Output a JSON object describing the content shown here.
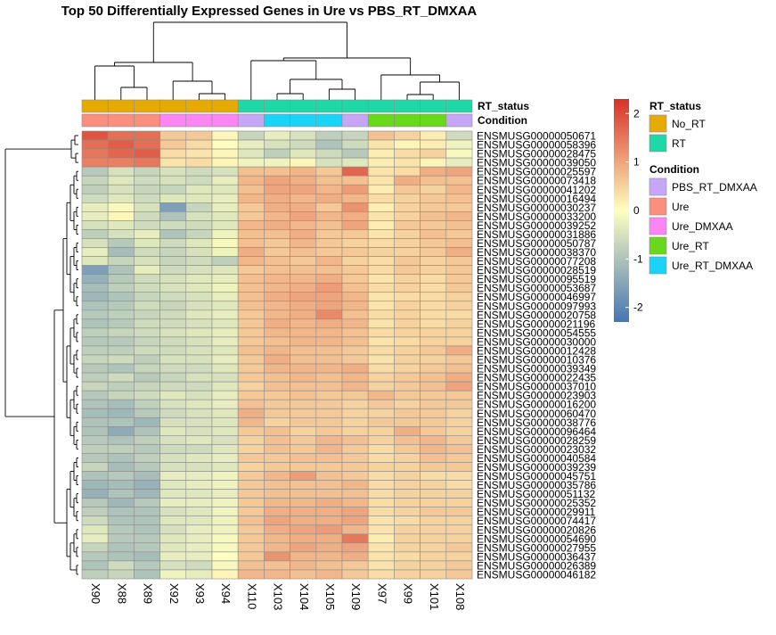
{
  "chart_data": {
    "type": "heatmap",
    "title": "Top 50 Differentially Expressed Genes in Ure vs PBS_RT_DMXAA",
    "columns": [
      "X90",
      "X88",
      "X89",
      "X92",
      "X93",
      "X94",
      "X110",
      "X103",
      "X104",
      "X105",
      "X109",
      "X97",
      "X99",
      "X101",
      "X108"
    ],
    "rows": [
      "ENSMUSG00000050671",
      "ENSMUSG00000058396",
      "ENSMUSG00000028475",
      "ENSMUSG00000039050",
      "ENSMUSG00000025597",
      "ENSMUSG00000073418",
      "ENSMUSG00000041202",
      "ENSMUSG00000016494",
      "ENSMUSG00000030237",
      "ENSMUSG00000033200",
      "ENSMUSG00000039252",
      "ENSMUSG00000031886",
      "ENSMUSG00000050787",
      "ENSMUSG00000038370",
      "ENSMUSG00000077208",
      "ENSMUSG00000028519",
      "ENSMUSG00000095519",
      "ENSMUSG00000053687",
      "ENSMUSG00000046997",
      "ENSMUSG00000097993",
      "ENSMUSG00000020758",
      "ENSMUSG00000021196",
      "ENSMUSG00000054555",
      "ENSMUSG00000030000",
      "ENSMUSG00000012428",
      "ENSMUSG00000010376",
      "ENSMUSG00000039349",
      "ENSMUSG00000022435",
      "ENSMUSG00000037010",
      "ENSMUSG00000023903",
      "ENSMUSG00000016200",
      "ENSMUSG00000060470",
      "ENSMUSG00000038776",
      "ENSMUSG00000096464",
      "ENSMUSG00000028259",
      "ENSMUSG00000023032",
      "ENSMUSG00000040584",
      "ENSMUSG00000039239",
      "ENSMUSG00000045751",
      "ENSMUSG00000035786",
      "ENSMUSG00000051132",
      "ENSMUSG00000025352",
      "ENSMUSG00000029911",
      "ENSMUSG00000074417",
      "ENSMUSG00000020826",
      "ENSMUSG00000054690",
      "ENSMUSG00000027955",
      "ENSMUSG00000036437",
      "ENSMUSG00000026389",
      "ENSMUSG00000046182"
    ],
    "values": [
      [
        1.9,
        1.6,
        1.6,
        0.6,
        0.6,
        0.1,
        -0.7,
        -0.3,
        -0.5,
        -0.8,
        -0.7,
        0.7,
        0.5,
        0.2,
        -0.6
      ],
      [
        1.6,
        1.8,
        1.6,
        0.6,
        0.4,
        0.0,
        -0.3,
        -0.5,
        -0.6,
        -1.0,
        -0.6,
        0.3,
        0.1,
        0.2,
        -0.2
      ],
      [
        1.5,
        1.7,
        1.8,
        0.4,
        0.3,
        0.1,
        -0.4,
        -0.8,
        -0.4,
        -0.6,
        -0.9,
        0.2,
        0.4,
        0.5,
        -0.1
      ],
      [
        1.4,
        1.4,
        1.5,
        0.3,
        0.4,
        0.1,
        -0.2,
        -0.2,
        0.1,
        -0.5,
        -0.4,
        0.2,
        0.3,
        0.1,
        -0.3
      ],
      [
        -0.9,
        -0.5,
        -0.7,
        -0.5,
        -0.6,
        -0.5,
        0.7,
        0.7,
        0.8,
        0.6,
        1.7,
        0.3,
        0.4,
        0.9,
        1.0
      ],
      [
        -0.7,
        -0.4,
        -0.6,
        -0.5,
        -0.6,
        -0.3,
        0.8,
        1.0,
        0.9,
        0.7,
        0.7,
        0.3,
        0.9,
        0.7,
        0.7
      ],
      [
        -0.8,
        -0.5,
        -0.7,
        -0.7,
        -0.4,
        -0.4,
        0.7,
        1.0,
        1.0,
        0.8,
        1.1,
        0.2,
        0.6,
        0.5,
        0.8
      ],
      [
        -0.6,
        -0.4,
        -0.6,
        -0.4,
        -0.4,
        -0.3,
        0.8,
        0.9,
        0.8,
        0.9,
        0.8,
        0.4,
        0.5,
        0.6,
        0.7
      ],
      [
        -0.3,
        -0.1,
        -0.5,
        -1.6,
        -0.7,
        -0.3,
        0.6,
        0.9,
        0.9,
        0.6,
        1.2,
        0.2,
        0.5,
        0.6,
        0.6
      ],
      [
        -0.3,
        0.1,
        -0.6,
        -1.0,
        -0.5,
        -0.4,
        0.6,
        0.8,
        1.0,
        0.8,
        0.9,
        0.3,
        0.5,
        0.7,
        0.8
      ],
      [
        -0.5,
        -0.4,
        -0.6,
        -0.6,
        -0.6,
        -0.4,
        0.8,
        0.9,
        0.8,
        0.7,
        1.0,
        0.2,
        0.6,
        0.6,
        0.7
      ],
      [
        -0.8,
        -0.5,
        -0.3,
        -1.0,
        -0.7,
        -0.2,
        0.7,
        0.7,
        0.9,
        0.6,
        0.6,
        0.3,
        0.5,
        0.7,
        0.6
      ],
      [
        -0.5,
        -0.9,
        -0.4,
        -0.6,
        -0.4,
        -0.1,
        0.7,
        0.6,
        0.8,
        0.6,
        0.5,
        0.4,
        0.5,
        0.6,
        0.7
      ],
      [
        -0.3,
        -1.1,
        -0.6,
        -0.7,
        -0.5,
        -0.2,
        0.9,
        0.6,
        0.7,
        0.6,
        0.6,
        0.5,
        0.5,
        0.6,
        0.9
      ],
      [
        -0.4,
        -0.7,
        -0.5,
        -0.7,
        -0.6,
        -0.8,
        0.8,
        0.7,
        0.6,
        0.8,
        0.5,
        0.4,
        0.6,
        0.5,
        0.6
      ],
      [
        -1.6,
        -1.0,
        -0.3,
        -0.6,
        -0.5,
        -0.4,
        0.6,
        0.7,
        0.7,
        0.7,
        0.6,
        0.4,
        0.6,
        0.5,
        0.6
      ],
      [
        -1.3,
        -0.9,
        -0.6,
        -0.5,
        -0.4,
        -0.3,
        0.7,
        0.8,
        0.8,
        0.9,
        0.6,
        0.3,
        0.5,
        0.4,
        0.6
      ],
      [
        -1.1,
        -0.8,
        -0.6,
        -0.5,
        -0.4,
        -0.2,
        0.7,
        0.8,
        0.9,
        1.1,
        0.7,
        0.4,
        0.5,
        0.4,
        0.6
      ],
      [
        -1.2,
        -1.0,
        -0.7,
        -0.6,
        -0.5,
        -0.3,
        0.7,
        0.9,
        1.0,
        1.0,
        0.8,
        0.3,
        0.4,
        0.4,
        0.5
      ],
      [
        -1.0,
        -0.9,
        -0.6,
        -0.7,
        -0.5,
        -0.4,
        0.7,
        0.8,
        0.9,
        1.0,
        0.8,
        0.3,
        0.5,
        0.4,
        0.5
      ],
      [
        -0.9,
        -0.8,
        -0.7,
        -0.6,
        -0.4,
        -0.3,
        0.6,
        0.8,
        0.9,
        1.3,
        0.7,
        0.4,
        0.5,
        0.4,
        0.4
      ],
      [
        -1.0,
        -0.9,
        -0.6,
        -0.6,
        -0.5,
        -0.4,
        0.6,
        0.9,
        0.8,
        0.9,
        0.8,
        0.3,
        0.5,
        0.4,
        0.5
      ],
      [
        -0.8,
        -0.7,
        -0.6,
        -0.5,
        -0.4,
        -0.3,
        0.6,
        0.8,
        0.8,
        0.8,
        0.7,
        0.4,
        0.5,
        0.5,
        0.5
      ],
      [
        -0.9,
        -0.9,
        -0.7,
        -0.6,
        -0.5,
        -0.3,
        0.6,
        0.7,
        0.8,
        0.8,
        0.7,
        0.3,
        0.4,
        0.5,
        0.5
      ],
      [
        -0.8,
        -0.8,
        -0.6,
        -0.6,
        -0.5,
        -0.4,
        0.7,
        0.8,
        0.7,
        0.7,
        0.6,
        0.4,
        0.5,
        0.6,
        0.9
      ],
      [
        -0.7,
        -0.6,
        -0.8,
        -0.5,
        -0.5,
        -0.3,
        0.6,
        0.9,
        0.7,
        0.7,
        0.6,
        0.3,
        0.5,
        0.5,
        0.6
      ],
      [
        -0.9,
        -1.0,
        -0.7,
        -0.6,
        -0.6,
        -0.4,
        0.6,
        0.8,
        0.8,
        0.8,
        0.9,
        0.4,
        0.5,
        0.6,
        0.7
      ],
      [
        -0.8,
        -0.6,
        -0.9,
        -0.7,
        -0.5,
        -0.5,
        0.6,
        0.7,
        0.8,
        0.7,
        0.8,
        0.5,
        0.6,
        0.7,
        0.9
      ],
      [
        -0.7,
        -0.8,
        -0.7,
        -0.6,
        -0.6,
        -0.4,
        0.5,
        0.7,
        0.7,
        0.7,
        0.8,
        0.5,
        0.6,
        0.7,
        1.0
      ],
      [
        -0.9,
        -0.7,
        -0.6,
        -0.4,
        -0.5,
        -0.3,
        0.6,
        0.6,
        0.7,
        0.6,
        0.6,
        0.8,
        0.6,
        0.6,
        0.6
      ],
      [
        -1.0,
        -1.1,
        -0.8,
        -0.5,
        -0.4,
        -0.3,
        0.7,
        0.6,
        0.6,
        0.6,
        0.5,
        0.6,
        0.5,
        0.6,
        0.6
      ],
      [
        -1.1,
        -1.2,
        -0.9,
        -0.6,
        -0.5,
        -0.4,
        0.9,
        0.6,
        0.6,
        0.6,
        0.5,
        0.5,
        0.6,
        0.6,
        0.5
      ],
      [
        -1.0,
        -1.0,
        -1.2,
        -0.5,
        -0.5,
        -0.4,
        0.8,
        0.5,
        0.6,
        0.6,
        0.5,
        0.6,
        0.6,
        0.6,
        0.5
      ],
      [
        -1.0,
        -1.4,
        -1.0,
        -0.4,
        -0.5,
        -0.4,
        0.6,
        0.7,
        0.5,
        0.6,
        0.5,
        0.5,
        0.9,
        0.6,
        0.5
      ],
      [
        -0.9,
        -1.0,
        -0.8,
        -0.5,
        -0.4,
        -0.5,
        0.5,
        0.7,
        0.6,
        0.8,
        0.7,
        0.5,
        0.7,
        0.8,
        0.6
      ],
      [
        -0.8,
        -0.8,
        -0.9,
        -0.6,
        -0.6,
        -0.4,
        0.5,
        0.7,
        0.6,
        0.8,
        0.6,
        0.4,
        0.6,
        0.8,
        0.7
      ],
      [
        -0.9,
        -1.0,
        -0.8,
        -0.5,
        -0.4,
        -0.3,
        0.6,
        0.6,
        0.7,
        0.7,
        0.6,
        0.4,
        0.5,
        0.7,
        0.6
      ],
      [
        -0.7,
        -1.1,
        -0.9,
        -0.5,
        -0.5,
        -0.4,
        0.5,
        0.6,
        0.6,
        0.6,
        0.6,
        0.5,
        0.5,
        0.6,
        0.6
      ],
      [
        -1.0,
        -0.9,
        -1.1,
        -0.3,
        -0.3,
        -0.2,
        0.6,
        0.8,
        1.1,
        0.7,
        0.6,
        0.4,
        0.5,
        0.4,
        0.4
      ],
      [
        -1.2,
        -1.1,
        -1.3,
        -0.4,
        -0.3,
        -0.2,
        0.6,
        0.7,
        0.7,
        0.7,
        0.8,
        0.4,
        0.5,
        0.5,
        0.4
      ],
      [
        -1.3,
        -1.0,
        -1.2,
        -0.4,
        -0.4,
        -0.3,
        0.6,
        0.7,
        0.7,
        0.7,
        0.7,
        0.4,
        0.5,
        0.5,
        0.5
      ],
      [
        -0.9,
        -1.2,
        -0.9,
        -0.3,
        -0.3,
        -0.2,
        0.6,
        0.8,
        0.8,
        0.9,
        0.8,
        0.4,
        0.5,
        0.5,
        0.5
      ],
      [
        -0.8,
        -1.0,
        -1.0,
        -0.5,
        -0.4,
        -0.2,
        0.6,
        0.9,
        0.9,
        0.9,
        1.0,
        0.4,
        0.5,
        0.6,
        0.6
      ],
      [
        -0.6,
        -1.0,
        -1.0,
        -0.4,
        -0.4,
        -0.2,
        0.7,
        1.0,
        0.9,
        0.9,
        1.0,
        0.3,
        0.4,
        0.5,
        0.5
      ],
      [
        -0.4,
        -0.9,
        -1.0,
        -0.5,
        -0.3,
        -0.2,
        0.6,
        0.9,
        1.0,
        1.1,
        0.8,
        0.3,
        0.5,
        0.5,
        0.5
      ],
      [
        -0.3,
        -0.9,
        -0.9,
        -0.4,
        -0.3,
        -0.1,
        0.6,
        0.8,
        0.9,
        0.9,
        1.5,
        0.2,
        0.5,
        0.5,
        0.5
      ],
      [
        -0.7,
        -1.0,
        -0.9,
        -0.4,
        -0.3,
        -0.1,
        0.6,
        0.8,
        1.0,
        0.9,
        1.0,
        0.3,
        0.5,
        0.5,
        0.6
      ],
      [
        -0.9,
        -1.0,
        -1.1,
        -0.3,
        -0.3,
        0.0,
        0.6,
        1.2,
        0.8,
        0.8,
        0.9,
        0.3,
        0.4,
        0.5,
        0.5
      ],
      [
        -1.0,
        -0.6,
        -0.9,
        -0.5,
        -0.6,
        -0.1,
        0.7,
        0.7,
        0.8,
        0.7,
        0.6,
        0.3,
        0.5,
        0.5,
        0.6
      ],
      [
        -0.8,
        -0.7,
        -1.0,
        -0.2,
        -0.3,
        0.1,
        0.8,
        0.8,
        0.7,
        0.8,
        0.6,
        0.4,
        0.5,
        0.5,
        0.6
      ]
    ],
    "annotations": {
      "RT_status": [
        "No_RT",
        "No_RT",
        "No_RT",
        "No_RT",
        "No_RT",
        "No_RT",
        "RT",
        "RT",
        "RT",
        "RT",
        "RT",
        "RT",
        "RT",
        "RT",
        "RT"
      ],
      "Condition": [
        "Ure",
        "Ure",
        "Ure",
        "Ure_DMXAA",
        "Ure_DMXAA",
        "Ure_DMXAA",
        "PBS_RT_DMXAA",
        "Ure_RT_DMXAA",
        "Ure_RT_DMXAA",
        "Ure_RT_DMXAA",
        "PBS_RT_DMXAA",
        "Ure_RT",
        "Ure_RT",
        "Ure_RT",
        "PBS_RT_DMXAA"
      ]
    },
    "annotation_labels": {
      "rt_status": "RT_status",
      "condition": "Condition"
    },
    "colorbar": {
      "min": -2.3,
      "max": 2.3,
      "ticks": [
        2,
        1,
        0,
        -1,
        -2
      ],
      "colors": [
        "#4575b4",
        "#ffffbf",
        "#d73027"
      ]
    },
    "legend": {
      "placement": "right",
      "groups": [
        {
          "title": "RT_status",
          "entries": [
            {
              "label": "No_RT",
              "color": "#e6ab02"
            },
            {
              "label": "RT",
              "color": "#1ed8a8"
            }
          ]
        },
        {
          "title": "Condition",
          "entries": [
            {
              "label": "PBS_RT_DMXAA",
              "color": "#c6a7f7"
            },
            {
              "label": "Ure",
              "color": "#fb8f7e"
            },
            {
              "label": "Ure_DMXAA",
              "color": "#fb86f3"
            },
            {
              "label": "Ure_RT",
              "color": "#6ad81a"
            },
            {
              "label": "Ure_RT_DMXAA",
              "color": "#1ad4f8"
            }
          ]
        }
      ]
    },
    "xlabel": "",
    "ylabel": ""
  }
}
